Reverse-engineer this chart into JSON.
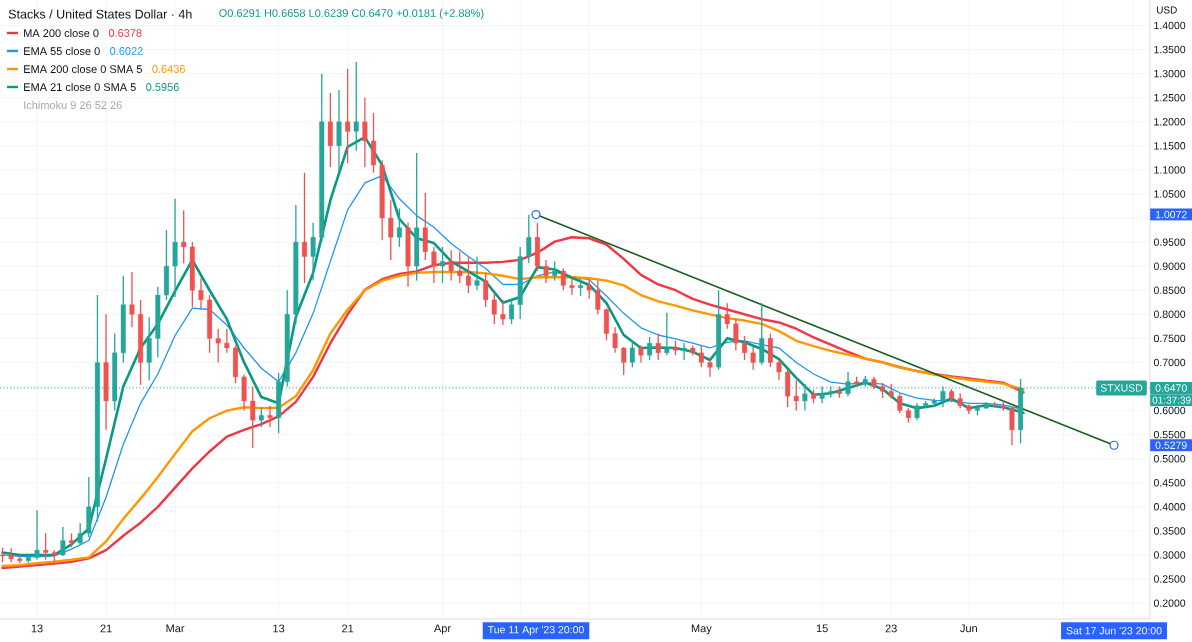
{
  "chart_data": {
    "type": "candlestick",
    "title": "Stacks / United States Dollar · 4h",
    "ylabel": "USD",
    "x": [
      "2023-02-09",
      "2023-02-10",
      "2023-02-11",
      "2023-02-12",
      "2023-02-13",
      "2023-02-14",
      "2023-02-15",
      "2023-02-16",
      "2023-02-17",
      "2023-02-18",
      "2023-02-19",
      "2023-02-20",
      "2023-02-21",
      "2023-02-22",
      "2023-02-23",
      "2023-02-24",
      "2023-02-25",
      "2023-02-26",
      "2023-02-27",
      "2023-02-28",
      "2023-03-01",
      "2023-03-02",
      "2023-03-03",
      "2023-03-04",
      "2023-03-05",
      "2023-03-06",
      "2023-03-07",
      "2023-03-08",
      "2023-03-09",
      "2023-03-10",
      "2023-03-11",
      "2023-03-12",
      "2023-03-13",
      "2023-03-14",
      "2023-03-15",
      "2023-03-16",
      "2023-03-17",
      "2023-03-18",
      "2023-03-19",
      "2023-03-20",
      "2023-03-21",
      "2023-03-22",
      "2023-03-23",
      "2023-03-24",
      "2023-03-25",
      "2023-03-26",
      "2023-03-27",
      "2023-03-28",
      "2023-03-29",
      "2023-03-30",
      "2023-03-31",
      "2023-04-01",
      "2023-04-02",
      "2023-04-03",
      "2023-04-04",
      "2023-04-05",
      "2023-04-06",
      "2023-04-07",
      "2023-04-08",
      "2023-04-09",
      "2023-04-10",
      "2023-04-11",
      "2023-04-12",
      "2023-04-13",
      "2023-04-14",
      "2023-04-15",
      "2023-04-16",
      "2023-04-17",
      "2023-04-18",
      "2023-04-19",
      "2023-04-20",
      "2023-04-21",
      "2023-04-22",
      "2023-04-23",
      "2023-04-24",
      "2023-04-25",
      "2023-04-26",
      "2023-04-27",
      "2023-04-28",
      "2023-04-29",
      "2023-04-30",
      "2023-05-01",
      "2023-05-02",
      "2023-05-03",
      "2023-05-04",
      "2023-05-05",
      "2023-05-06",
      "2023-05-07",
      "2023-05-08",
      "2023-05-09",
      "2023-05-10",
      "2023-05-11",
      "2023-05-12",
      "2023-05-13",
      "2023-05-14",
      "2023-05-15",
      "2023-05-16",
      "2023-05-17",
      "2023-05-18",
      "2023-05-19",
      "2023-05-20",
      "2023-05-21",
      "2023-05-22",
      "2023-05-23",
      "2023-05-24",
      "2023-05-25",
      "2023-05-26",
      "2023-05-27",
      "2023-05-28",
      "2023-05-29",
      "2023-05-30",
      "2023-05-31",
      "2023-06-01",
      "2023-06-02",
      "2023-06-03",
      "2023-06-04",
      "2023-06-05",
      "2023-06-06",
      "2023-06-07"
    ],
    "ohlc": [
      [
        0.3,
        0.315,
        0.285,
        0.298
      ],
      [
        0.298,
        0.314,
        0.285,
        0.292
      ],
      [
        0.292,
        0.3,
        0.283,
        0.288
      ],
      [
        0.288,
        0.3,
        0.284,
        0.295
      ],
      [
        0.295,
        0.393,
        0.29,
        0.31
      ],
      [
        0.31,
        0.345,
        0.29,
        0.305
      ],
      [
        0.305,
        0.31,
        0.285,
        0.3
      ],
      [
        0.3,
        0.358,
        0.298,
        0.33
      ],
      [
        0.33,
        0.345,
        0.316,
        0.325
      ],
      [
        0.325,
        0.366,
        0.32,
        0.345
      ],
      [
        0.345,
        0.462,
        0.337,
        0.4
      ],
      [
        0.4,
        0.84,
        0.37,
        0.7
      ],
      [
        0.7,
        0.8,
        0.56,
        0.62
      ],
      [
        0.62,
        0.76,
        0.6,
        0.72
      ],
      [
        0.72,
        0.88,
        0.7,
        0.82
      ],
      [
        0.82,
        0.888,
        0.773,
        0.8
      ],
      [
        0.8,
        0.83,
        0.653,
        0.7
      ],
      [
        0.7,
        0.794,
        0.663,
        0.75
      ],
      [
        0.75,
        0.857,
        0.71,
        0.84
      ],
      [
        0.84,
        0.975,
        0.83,
        0.9
      ],
      [
        0.9,
        1.04,
        0.836,
        0.95
      ],
      [
        0.95,
        1.016,
        0.906,
        0.94
      ],
      [
        0.94,
        0.95,
        0.815,
        0.85
      ],
      [
        0.85,
        0.875,
        0.81,
        0.83
      ],
      [
        0.83,
        0.84,
        0.72,
        0.75
      ],
      [
        0.75,
        0.77,
        0.7,
        0.74
      ],
      [
        0.74,
        0.77,
        0.72,
        0.73
      ],
      [
        0.73,
        0.735,
        0.657,
        0.67
      ],
      [
        0.67,
        0.675,
        0.6,
        0.62
      ],
      [
        0.62,
        0.65,
        0.522,
        0.58
      ],
      [
        0.58,
        0.607,
        0.566,
        0.59
      ],
      [
        0.59,
        0.61,
        0.566,
        0.585
      ],
      [
        0.585,
        0.678,
        0.553,
        0.66
      ],
      [
        0.66,
        0.85,
        0.65,
        0.8
      ],
      [
        0.8,
        1.027,
        0.78,
        0.95
      ],
      [
        0.95,
        1.094,
        0.865,
        0.92
      ],
      [
        0.92,
        0.99,
        0.87,
        0.96
      ],
      [
        0.96,
        1.3,
        0.95,
        1.2
      ],
      [
        1.2,
        1.26,
        1.106,
        1.15
      ],
      [
        1.15,
        1.266,
        1.094,
        1.2
      ],
      [
        1.2,
        1.31,
        1.114,
        1.18
      ],
      [
        1.18,
        1.324,
        1.14,
        1.2
      ],
      [
        1.2,
        1.25,
        1.106,
        1.16
      ],
      [
        1.16,
        1.218,
        1.094,
        1.11
      ],
      [
        1.11,
        1.12,
        0.954,
        1.0
      ],
      [
        1.0,
        1.037,
        0.913,
        0.96
      ],
      [
        0.96,
        1.02,
        0.94,
        0.98
      ],
      [
        0.98,
        0.99,
        0.857,
        0.9
      ],
      [
        0.9,
        1.135,
        0.87,
        0.98
      ],
      [
        0.98,
        1.052,
        0.913,
        0.93
      ],
      [
        0.93,
        0.94,
        0.865,
        0.9
      ],
      [
        0.9,
        0.94,
        0.865,
        0.91
      ],
      [
        0.91,
        0.933,
        0.87,
        0.89
      ],
      [
        0.89,
        0.93,
        0.865,
        0.88
      ],
      [
        0.88,
        0.92,
        0.844,
        0.86
      ],
      [
        0.86,
        0.92,
        0.85,
        0.87
      ],
      [
        0.87,
        0.886,
        0.815,
        0.83
      ],
      [
        0.83,
        0.844,
        0.78,
        0.8
      ],
      [
        0.8,
        0.83,
        0.778,
        0.79
      ],
      [
        0.79,
        0.83,
        0.78,
        0.82
      ],
      [
        0.82,
        0.94,
        0.79,
        0.92
      ],
      [
        0.92,
        1.007,
        0.906,
        0.96
      ],
      [
        0.96,
        0.99,
        0.89,
        0.9
      ],
      [
        0.9,
        0.913,
        0.865,
        0.88
      ],
      [
        0.88,
        0.91,
        0.87,
        0.89
      ],
      [
        0.89,
        0.895,
        0.85,
        0.86
      ],
      [
        0.86,
        0.877,
        0.84,
        0.855
      ],
      [
        0.855,
        0.875,
        0.838,
        0.86
      ],
      [
        0.86,
        0.873,
        0.833,
        0.85
      ],
      [
        0.85,
        0.87,
        0.8,
        0.81
      ],
      [
        0.81,
        0.812,
        0.746,
        0.76
      ],
      [
        0.76,
        0.773,
        0.72,
        0.73
      ],
      [
        0.73,
        0.732,
        0.674,
        0.7
      ],
      [
        0.7,
        0.746,
        0.69,
        0.73
      ],
      [
        0.73,
        0.735,
        0.7,
        0.715
      ],
      [
        0.715,
        0.753,
        0.705,
        0.74
      ],
      [
        0.74,
        0.76,
        0.705,
        0.72
      ],
      [
        0.72,
        0.803,
        0.715,
        0.73
      ],
      [
        0.73,
        0.745,
        0.715,
        0.725
      ],
      [
        0.725,
        0.74,
        0.705,
        0.73
      ],
      [
        0.73,
        0.735,
        0.715,
        0.72
      ],
      [
        0.72,
        0.735,
        0.69,
        0.7
      ],
      [
        0.7,
        0.705,
        0.67,
        0.69
      ],
      [
        0.69,
        0.85,
        0.685,
        0.8
      ],
      [
        0.8,
        0.823,
        0.77,
        0.78
      ],
      [
        0.78,
        0.79,
        0.725,
        0.74
      ],
      [
        0.74,
        0.755,
        0.705,
        0.72
      ],
      [
        0.72,
        0.732,
        0.685,
        0.7
      ],
      [
        0.7,
        0.823,
        0.695,
        0.75
      ],
      [
        0.75,
        0.76,
        0.69,
        0.7
      ],
      [
        0.7,
        0.705,
        0.663,
        0.68
      ],
      [
        0.68,
        0.685,
        0.607,
        0.63
      ],
      [
        0.63,
        0.663,
        0.6,
        0.62
      ],
      [
        0.62,
        0.655,
        0.6,
        0.635
      ],
      [
        0.635,
        0.643,
        0.615,
        0.625
      ],
      [
        0.625,
        0.65,
        0.615,
        0.635
      ],
      [
        0.635,
        0.65,
        0.627,
        0.64
      ],
      [
        0.64,
        0.65,
        0.627,
        0.635
      ],
      [
        0.635,
        0.68,
        0.63,
        0.66
      ],
      [
        0.66,
        0.67,
        0.65,
        0.655
      ],
      [
        0.655,
        0.672,
        0.65,
        0.665
      ],
      [
        0.665,
        0.67,
        0.645,
        0.65
      ],
      [
        0.65,
        0.657,
        0.626,
        0.64
      ],
      [
        0.64,
        0.655,
        0.625,
        0.63
      ],
      [
        0.63,
        0.636,
        0.595,
        0.6
      ],
      [
        0.6,
        0.605,
        0.575,
        0.585
      ],
      [
        0.585,
        0.615,
        0.58,
        0.61
      ],
      [
        0.61,
        0.62,
        0.605,
        0.615
      ],
      [
        0.615,
        0.625,
        0.608,
        0.62
      ],
      [
        0.62,
        0.65,
        0.607,
        0.64
      ],
      [
        0.64,
        0.645,
        0.617,
        0.625
      ],
      [
        0.625,
        0.636,
        0.605,
        0.61
      ],
      [
        0.61,
        0.612,
        0.593,
        0.6
      ],
      [
        0.6,
        0.612,
        0.59,
        0.605
      ],
      [
        0.605,
        0.618,
        0.603,
        0.612
      ],
      [
        0.612,
        0.618,
        0.607,
        0.61
      ],
      [
        0.61,
        0.62,
        0.6,
        0.605
      ],
      [
        0.605,
        0.607,
        0.528,
        0.56
      ],
      [
        0.56,
        0.6658,
        0.532,
        0.647
      ]
    ],
    "series": [
      {
        "name": "MA 200 close 0",
        "type": "line",
        "color": "#f23645",
        "x": [
          "2023-02-09",
          "2023-02-11",
          "2023-02-13",
          "2023-02-15",
          "2023-02-17",
          "2023-02-19",
          "2023-02-21",
          "2023-02-23",
          "2023-02-25",
          "2023-02-27",
          "2023-03-01",
          "2023-03-03",
          "2023-03-05",
          "2023-03-07",
          "2023-03-09",
          "2023-03-11",
          "2023-03-13",
          "2023-03-15",
          "2023-03-17",
          "2023-03-19",
          "2023-03-21",
          "2023-03-23",
          "2023-03-25",
          "2023-03-27",
          "2023-03-29",
          "2023-03-31",
          "2023-04-02",
          "2023-04-04",
          "2023-04-06",
          "2023-04-08",
          "2023-04-10",
          "2023-04-12",
          "2023-04-14",
          "2023-04-16",
          "2023-04-18",
          "2023-04-20",
          "2023-04-22",
          "2023-04-24",
          "2023-04-26",
          "2023-04-28",
          "2023-04-30",
          "2023-05-02",
          "2023-05-04",
          "2023-05-06",
          "2023-05-08",
          "2023-05-10",
          "2023-05-12",
          "2023-05-14",
          "2023-05-16",
          "2023-05-18",
          "2023-05-20",
          "2023-05-22",
          "2023-05-24",
          "2023-05-26",
          "2023-05-28",
          "2023-05-30",
          "2023-06-01",
          "2023-06-03",
          "2023-06-05",
          "2023-06-07T08:00"
        ],
        "values": [
          0.273,
          0.276,
          0.279,
          0.282,
          0.286,
          0.293,
          0.31,
          0.34,
          0.367,
          0.4,
          0.44,
          0.48,
          0.515,
          0.546,
          0.56,
          0.572,
          0.588,
          0.618,
          0.67,
          0.74,
          0.8,
          0.851,
          0.873,
          0.884,
          0.889,
          0.902,
          0.907,
          0.907,
          0.907,
          0.909,
          0.913,
          0.928,
          0.951,
          0.96,
          0.958,
          0.945,
          0.915,
          0.882,
          0.862,
          0.85,
          0.832,
          0.82,
          0.81,
          0.8,
          0.79,
          0.783,
          0.77,
          0.752,
          0.737,
          0.722,
          0.708,
          0.7,
          0.69,
          0.682,
          0.676,
          0.671,
          0.667,
          0.662,
          0.658,
          0.6378
        ]
      },
      {
        "name": "EMA 55 close 0",
        "type": "line",
        "color": "#2196f3",
        "x": [
          "2023-02-09",
          "2023-02-11",
          "2023-02-13",
          "2023-02-15",
          "2023-02-17",
          "2023-02-19",
          "2023-02-21",
          "2023-02-23",
          "2023-02-25",
          "2023-02-27",
          "2023-03-01",
          "2023-03-03",
          "2023-03-05",
          "2023-03-07",
          "2023-03-09",
          "2023-03-11",
          "2023-03-13",
          "2023-03-15",
          "2023-03-17",
          "2023-03-19",
          "2023-03-21",
          "2023-03-23",
          "2023-03-25",
          "2023-03-27",
          "2023-03-29",
          "2023-03-31",
          "2023-04-02",
          "2023-04-04",
          "2023-04-06",
          "2023-04-08",
          "2023-04-10",
          "2023-04-12",
          "2023-04-14",
          "2023-04-16",
          "2023-04-18",
          "2023-04-20",
          "2023-04-22",
          "2023-04-24",
          "2023-04-26",
          "2023-04-28",
          "2023-04-30",
          "2023-05-02",
          "2023-05-04",
          "2023-05-06",
          "2023-05-08",
          "2023-05-10",
          "2023-05-12",
          "2023-05-14",
          "2023-05-16",
          "2023-05-18",
          "2023-05-20",
          "2023-05-22",
          "2023-05-24",
          "2023-05-26",
          "2023-05-28",
          "2023-05-30",
          "2023-06-01",
          "2023-06-03",
          "2023-06-05",
          "2023-06-07T08:00"
        ],
        "values": [
          0.3,
          0.297,
          0.296,
          0.298,
          0.312,
          0.33,
          0.42,
          0.53,
          0.615,
          0.676,
          0.756,
          0.813,
          0.81,
          0.778,
          0.73,
          0.688,
          0.66,
          0.72,
          0.802,
          0.91,
          1.017,
          1.073,
          1.088,
          1.04,
          1.005,
          0.981,
          0.947,
          0.92,
          0.895,
          0.862,
          0.862,
          0.88,
          0.888,
          0.878,
          0.872,
          0.838,
          0.802,
          0.772,
          0.757,
          0.749,
          0.74,
          0.73,
          0.742,
          0.745,
          0.737,
          0.73,
          0.7,
          0.676,
          0.659,
          0.655,
          0.658,
          0.655,
          0.637,
          0.626,
          0.621,
          0.62,
          0.615,
          0.615,
          0.612,
          0.6022
        ]
      },
      {
        "name": "EMA 200 close 0 SMA 5",
        "type": "line",
        "color": "#ff9800",
        "x": [
          "2023-02-09",
          "2023-02-11",
          "2023-02-13",
          "2023-02-15",
          "2023-02-17",
          "2023-02-19",
          "2023-02-21",
          "2023-02-23",
          "2023-02-25",
          "2023-02-27",
          "2023-03-01",
          "2023-03-03",
          "2023-03-05",
          "2023-03-07",
          "2023-03-09",
          "2023-03-11",
          "2023-03-13",
          "2023-03-15",
          "2023-03-17",
          "2023-03-19",
          "2023-03-21",
          "2023-03-23",
          "2023-03-25",
          "2023-03-27",
          "2023-03-29",
          "2023-03-31",
          "2023-04-02",
          "2023-04-04",
          "2023-04-06",
          "2023-04-08",
          "2023-04-10",
          "2023-04-12",
          "2023-04-14",
          "2023-04-16",
          "2023-04-18",
          "2023-04-20",
          "2023-04-22",
          "2023-04-24",
          "2023-04-26",
          "2023-04-28",
          "2023-04-30",
          "2023-05-02",
          "2023-05-04",
          "2023-05-06",
          "2023-05-08",
          "2023-05-10",
          "2023-05-12",
          "2023-05-14",
          "2023-05-16",
          "2023-05-18",
          "2023-05-20",
          "2023-05-22",
          "2023-05-24",
          "2023-05-26",
          "2023-05-28",
          "2023-05-30",
          "2023-06-01",
          "2023-06-03",
          "2023-06-05",
          "2023-06-07T08:00"
        ],
        "values": [
          0.277,
          0.279,
          0.283,
          0.286,
          0.29,
          0.295,
          0.328,
          0.375,
          0.417,
          0.462,
          0.51,
          0.557,
          0.584,
          0.6,
          0.607,
          0.605,
          0.606,
          0.63,
          0.684,
          0.76,
          0.81,
          0.85,
          0.87,
          0.88,
          0.886,
          0.888,
          0.888,
          0.888,
          0.885,
          0.88,
          0.873,
          0.877,
          0.877,
          0.877,
          0.875,
          0.87,
          0.86,
          0.84,
          0.827,
          0.818,
          0.808,
          0.8,
          0.792,
          0.787,
          0.78,
          0.765,
          0.745,
          0.734,
          0.724,
          0.716,
          0.708,
          0.7,
          0.69,
          0.682,
          0.675,
          0.669,
          0.664,
          0.66,
          0.656,
          0.6436
        ]
      },
      {
        "name": "EMA 21 close 0 SMA 5",
        "type": "line",
        "color": "#089981",
        "x": [
          "2023-02-09",
          "2023-02-11",
          "2023-02-13",
          "2023-02-15",
          "2023-02-17",
          "2023-02-19",
          "2023-02-21",
          "2023-02-23",
          "2023-02-25",
          "2023-02-27",
          "2023-03-01",
          "2023-03-03",
          "2023-03-05",
          "2023-03-07",
          "2023-03-09",
          "2023-03-11",
          "2023-03-13",
          "2023-03-15",
          "2023-03-17",
          "2023-03-19",
          "2023-03-21",
          "2023-03-23",
          "2023-03-25",
          "2023-03-27",
          "2023-03-29",
          "2023-03-31",
          "2023-04-02",
          "2023-04-04",
          "2023-04-06",
          "2023-04-08",
          "2023-04-10",
          "2023-04-12",
          "2023-04-14",
          "2023-04-16",
          "2023-04-18",
          "2023-04-20",
          "2023-04-22",
          "2023-04-24",
          "2023-04-26",
          "2023-04-28",
          "2023-04-30",
          "2023-05-02",
          "2023-05-04",
          "2023-05-06",
          "2023-05-08",
          "2023-05-10",
          "2023-05-12",
          "2023-05-14",
          "2023-05-16",
          "2023-05-18",
          "2023-05-20",
          "2023-05-22",
          "2023-05-24",
          "2023-05-26",
          "2023-05-28",
          "2023-05-30",
          "2023-06-01",
          "2023-06-03",
          "2023-06-05",
          "2023-06-07T08:00"
        ],
        "values": [
          0.305,
          0.3,
          0.3,
          0.3,
          0.322,
          0.355,
          0.5,
          0.65,
          0.73,
          0.78,
          0.848,
          0.913,
          0.85,
          0.79,
          0.7,
          0.628,
          0.615,
          0.795,
          0.886,
          1.037,
          1.148,
          1.168,
          1.11,
          0.998,
          0.958,
          0.948,
          0.91,
          0.889,
          0.868,
          0.824,
          0.836,
          0.898,
          0.893,
          0.876,
          0.861,
          0.823,
          0.757,
          0.73,
          0.731,
          0.73,
          0.722,
          0.705,
          0.75,
          0.742,
          0.728,
          0.707,
          0.668,
          0.633,
          0.636,
          0.647,
          0.658,
          0.645,
          0.615,
          0.605,
          0.61,
          0.625,
          0.605,
          0.611,
          0.607,
          0.5956
        ]
      },
      {
        "type": "line",
        "color": "#1b5e20",
        "x": [
          "2023-04-11T20:00",
          "2023-06-17T20:00"
        ],
        "values": [
          1.0072,
          0.5279
        ],
        "marker": "circle"
      }
    ],
    "xlim": [
      "2023-02-08T17:00",
      "2023-06-22T00:00"
    ],
    "ylim": [
      0.167,
      1.453
    ],
    "xticks": [
      {
        "value": "2023-02-13",
        "label": "13"
      },
      {
        "value": "2023-02-21",
        "label": "21"
      },
      {
        "value": "2023-03-01",
        "label": "Mar"
      },
      {
        "value": "2023-03-13",
        "label": "13"
      },
      {
        "value": "2023-03-21",
        "label": "21"
      },
      {
        "value": "2023-04-01",
        "label": "Apr"
      },
      {
        "value": "2023-04-10",
        "label": null
      },
      {
        "value": "2023-04-18",
        "label": null
      },
      {
        "value": "2023-05-01",
        "label": "May"
      },
      {
        "value": "2023-05-15",
        "label": "15"
      },
      {
        "value": "2023-05-23",
        "label": "23"
      },
      {
        "value": "2023-06-01",
        "label": "Jun"
      },
      {
        "value": "2023-06-12",
        "label": null
      },
      {
        "value": "2023-06-20",
        "label": null
      }
    ],
    "yticks": [
      {
        "value": 0.2,
        "label": "0.2000"
      },
      {
        "value": 0.25,
        "label": "0.2500"
      },
      {
        "value": 0.3,
        "label": "0.3000"
      },
      {
        "value": 0.35,
        "label": "0.3500"
      },
      {
        "value": 0.4,
        "label": "0.4000"
      },
      {
        "value": 0.45,
        "label": "0.4500"
      },
      {
        "value": 0.5,
        "label": "0.5000"
      },
      {
        "value": 0.55,
        "label": "0.5500"
      },
      {
        "value": 0.6,
        "label": "0.6000"
      },
      {
        "value": 0.65,
        "label": null
      },
      {
        "value": 0.7,
        "label": "0.7000"
      },
      {
        "value": 0.75,
        "label": "0.7500"
      },
      {
        "value": 0.8,
        "label": "0.8000"
      },
      {
        "value": 0.85,
        "label": "0.8500"
      },
      {
        "value": 0.9,
        "label": "0.9000"
      },
      {
        "value": 0.95,
        "label": "0.9500"
      },
      {
        "value": 1.0,
        "label": null
      },
      {
        "value": 1.05,
        "label": "1.0500"
      },
      {
        "value": 1.1,
        "label": "1.1000"
      },
      {
        "value": 1.15,
        "label": "1.1500"
      },
      {
        "value": 1.2,
        "label": "1.2000"
      },
      {
        "value": 1.25,
        "label": "1.2500"
      },
      {
        "value": 1.3,
        "label": "1.3000"
      },
      {
        "value": 1.35,
        "label": "1.3500"
      },
      {
        "value": 1.4,
        "label": "1.4000"
      }
    ],
    "grid": true,
    "legend": "top left",
    "ref_lines": [
      {
        "axis": "y",
        "value": 0.647,
        "label": "STXUSD",
        "line_style": "dotted",
        "color": "#26a69a"
      }
    ],
    "annotations": [
      "O0.6291 H0.6658 L0.6239 C0.6470 +0.0181 (+2.88%)",
      "0.6378",
      "0.6022",
      "0.6436",
      "0.5956",
      "Ichimoku 9 26 52 26",
      "0.6470",
      "01:37:39",
      "1.0072",
      "0.5279",
      "Tue 11 Apr '23 20:00",
      "Sat 17 Jun '23 20:00"
    ]
  }
}
